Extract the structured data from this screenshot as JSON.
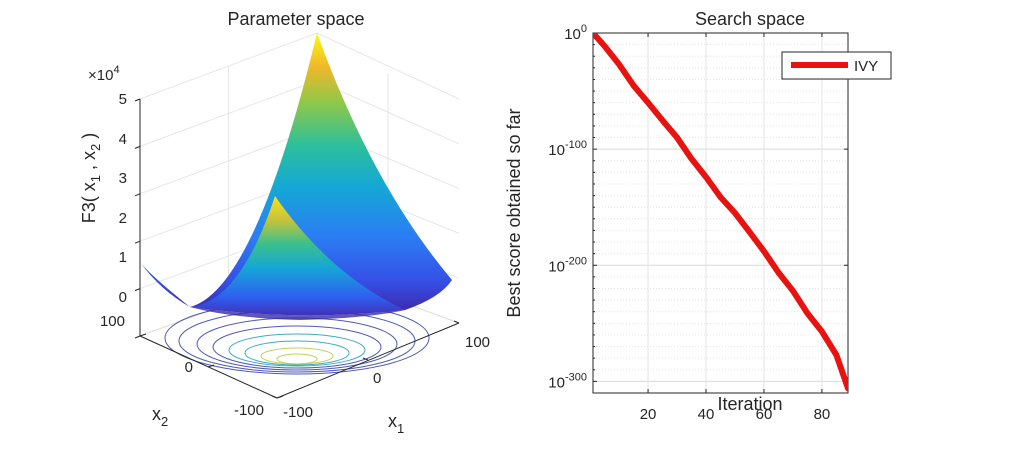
{
  "chart_data": [
    {
      "type": "surface3d",
      "title": "Parameter space",
      "function": "F3",
      "xlabel": {
        "base": "x",
        "sub": "1"
      },
      "ylabel": {
        "base": "x",
        "sub": "2"
      },
      "zlabel": {
        "prefix": "F3( x",
        "sub1": "1",
        "mid": " , x",
        "sub2": "2",
        "suffix": " )"
      },
      "z_multiplier": {
        "times": "×10",
        "exp": "4"
      },
      "x_ticks": [
        "-100",
        "0",
        "100"
      ],
      "y_ticks": [
        "-100",
        "0",
        "100"
      ],
      "z_ticks": [
        "0",
        "1",
        "2",
        "3",
        "4",
        "5"
      ],
      "xlim": [
        -100,
        100
      ],
      "ylim": [
        -100,
        100
      ],
      "zlim": [
        0,
        50000
      ],
      "colormap": [
        "#3e26a8",
        "#2b6ef6",
        "#14a7d6",
        "#2dbf9c",
        "#8dc849",
        "#f0b82b",
        "#f9fb0e"
      ],
      "contour_color": "#2f3da8"
    },
    {
      "type": "line",
      "title": "Search space",
      "xlabel": "Iteration",
      "ylabel": "Best score obtained so far",
      "xlim": [
        1,
        89
      ],
      "ylim_log10": [
        -310,
        0
      ],
      "y_scale": "log",
      "x_ticks": [
        "20",
        "40",
        "60",
        "80"
      ],
      "y_ticks": [
        {
          "base": "10",
          "exp": "0"
        },
        {
          "base": "10",
          "exp": "-100"
        },
        {
          "base": "10",
          "exp": "-200"
        },
        {
          "base": "10",
          "exp": "-300"
        }
      ],
      "grid": true,
      "legend_position": "top-right",
      "series": [
        {
          "name": "IVY",
          "color": "#e8120f",
          "x": [
            1,
            5,
            10,
            15,
            20,
            25,
            30,
            35,
            40,
            45,
            50,
            55,
            60,
            65,
            70,
            75,
            80,
            85,
            89
          ],
          "log10_y": [
            0,
            -10,
            -27,
            -44,
            -60,
            -74,
            -90,
            -107,
            -124,
            -140,
            -155,
            -170,
            -188,
            -205,
            -222,
            -240,
            -257,
            -276,
            -306
          ]
        }
      ]
    }
  ]
}
